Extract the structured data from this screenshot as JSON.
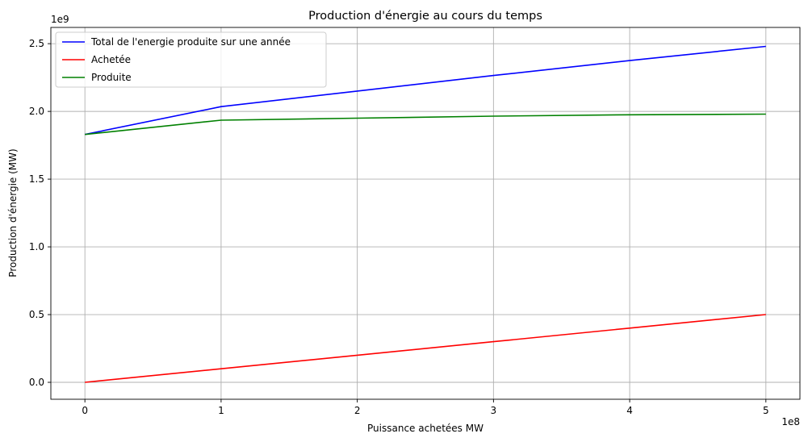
{
  "chart_data": {
    "type": "line",
    "title": "Production d'énergie au cours du temps",
    "xlabel": "Puissance achetées MW",
    "ylabel": "Production d'énergie (MW)",
    "x_offset_label": "1e8",
    "y_offset_label": "1e9",
    "x": [
      0,
      100000000,
      200000000,
      300000000,
      400000000,
      500000000
    ],
    "xlim": [
      -25000000,
      525000000
    ],
    "ylim": [
      -125000000,
      2620000000
    ],
    "x_ticks": [
      0,
      100000000,
      200000000,
      300000000,
      400000000,
      500000000
    ],
    "x_tick_labels": [
      "0",
      "1",
      "2",
      "3",
      "4",
      "5"
    ],
    "y_ticks": [
      0,
      500000000,
      1000000000,
      1500000000,
      2000000000,
      2500000000
    ],
    "y_tick_labels": [
      "0.0",
      "0.5",
      "1.0",
      "1.5",
      "2.0",
      "2.5"
    ],
    "grid": true,
    "legend_position": "top-left",
    "series": [
      {
        "name": "Total de l'energie produite sur une année",
        "color": "#0000ff",
        "values": [
          1830000000,
          2035000000,
          2150000000,
          2265000000,
          2375000000,
          2480000000
        ]
      },
      {
        "name": "Achetée",
        "color": "#ff0000",
        "values": [
          0,
          100000000,
          200000000,
          300000000,
          400000000,
          500000000
        ]
      },
      {
        "name": "Produite",
        "color": "#008000",
        "values": [
          1830000000,
          1935000000,
          1950000000,
          1965000000,
          1975000000,
          1980000000
        ]
      }
    ]
  }
}
